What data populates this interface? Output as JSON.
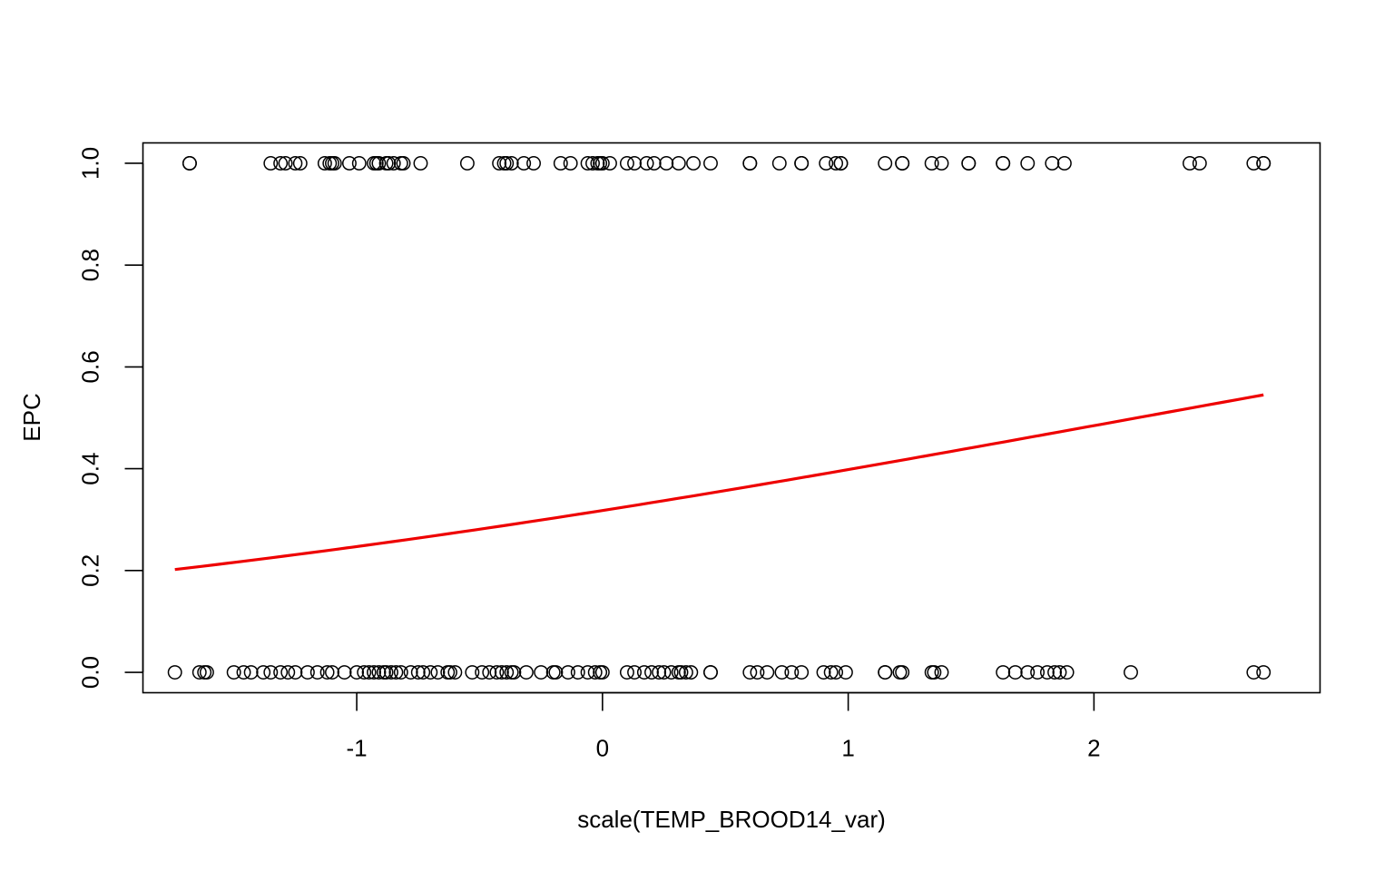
{
  "chart_data": {
    "type": "scatter",
    "title": "",
    "xlabel": "scale(TEMP_BROOD14_var)",
    "ylabel": "EPC",
    "xlim": [
      -1.87,
      2.92
    ],
    "ylim": [
      -0.04,
      1.04
    ],
    "x_ticks": [
      -1,
      0,
      1,
      2
    ],
    "y_ticks": [
      0.0,
      0.2,
      0.4,
      0.6,
      0.8,
      1.0
    ],
    "x_tick_labels": [
      "-1",
      "0",
      "1",
      "2"
    ],
    "y_tick_labels": [
      "0.0",
      "0.2",
      "0.4",
      "0.6",
      "0.8",
      "1.0"
    ],
    "grid": false,
    "legend": "none",
    "series": [
      {
        "type": "scatter",
        "marker": "open-circle",
        "color": "#000000",
        "points_y1_x": [
          -1.68,
          -1.68,
          -1.35,
          -1.31,
          -1.29,
          -1.25,
          -1.23,
          -1.13,
          -1.11,
          -1.1,
          -1.09,
          -1.03,
          -0.99,
          -0.93,
          -0.92,
          -0.91,
          -0.88,
          -0.87,
          -0.85,
          -0.82,
          -0.81,
          -0.74,
          -0.55,
          -0.42,
          -0.4,
          -0.39,
          -0.37,
          -0.32,
          -0.28,
          -0.17,
          -0.13,
          -0.06,
          -0.04,
          -0.02,
          -0.01,
          0.0,
          0.03,
          0.1,
          0.13,
          0.18,
          0.21,
          0.26,
          0.31,
          0.37,
          0.44,
          0.6,
          0.6,
          0.72,
          0.81,
          0.81,
          0.91,
          0.95,
          0.97,
          0.97,
          1.15,
          1.22,
          1.22,
          1.34,
          1.38,
          1.49,
          1.49,
          1.63,
          1.63,
          1.73,
          1.83,
          1.88,
          2.39,
          2.43,
          2.65,
          2.69,
          2.69
        ],
        "points_y0_x": [
          -1.74,
          -1.64,
          -1.62,
          -1.61,
          -1.5,
          -1.46,
          -1.43,
          -1.38,
          -1.35,
          -1.31,
          -1.28,
          -1.25,
          -1.2,
          -1.16,
          -1.12,
          -1.1,
          -1.05,
          -1.0,
          -0.97,
          -0.95,
          -0.93,
          -0.91,
          -0.89,
          -0.88,
          -0.86,
          -0.84,
          -0.82,
          -0.78,
          -0.75,
          -0.73,
          -0.7,
          -0.67,
          -0.63,
          -0.62,
          -0.6,
          -0.53,
          -0.49,
          -0.46,
          -0.43,
          -0.41,
          -0.39,
          -0.37,
          -0.36,
          -0.31,
          -0.25,
          -0.2,
          -0.19,
          -0.14,
          -0.1,
          -0.06,
          -0.03,
          -0.01,
          0.0,
          0.1,
          0.13,
          0.17,
          0.2,
          0.23,
          0.25,
          0.28,
          0.31,
          0.32,
          0.34,
          0.36,
          0.44,
          0.44,
          0.6,
          0.63,
          0.67,
          0.73,
          0.77,
          0.81,
          0.9,
          0.93,
          0.95,
          0.99,
          1.15,
          1.15,
          1.21,
          1.22,
          1.34,
          1.35,
          1.38,
          1.63,
          1.68,
          1.73,
          1.77,
          1.81,
          1.84,
          1.86,
          1.89,
          2.15,
          2.65,
          2.69
        ]
      },
      {
        "type": "line",
        "color": "#ee0000",
        "model": "logistic",
        "x_range": [
          -1.74,
          2.69
        ],
        "y_at_x_min": 0.202,
        "y_at_x_max": 0.545,
        "x": [
          -1.74,
          -1.0,
          0.0,
          1.0,
          2.0,
          2.69
        ],
        "y": [
          0.202,
          0.248,
          0.319,
          0.399,
          0.486,
          0.545
        ]
      }
    ]
  }
}
